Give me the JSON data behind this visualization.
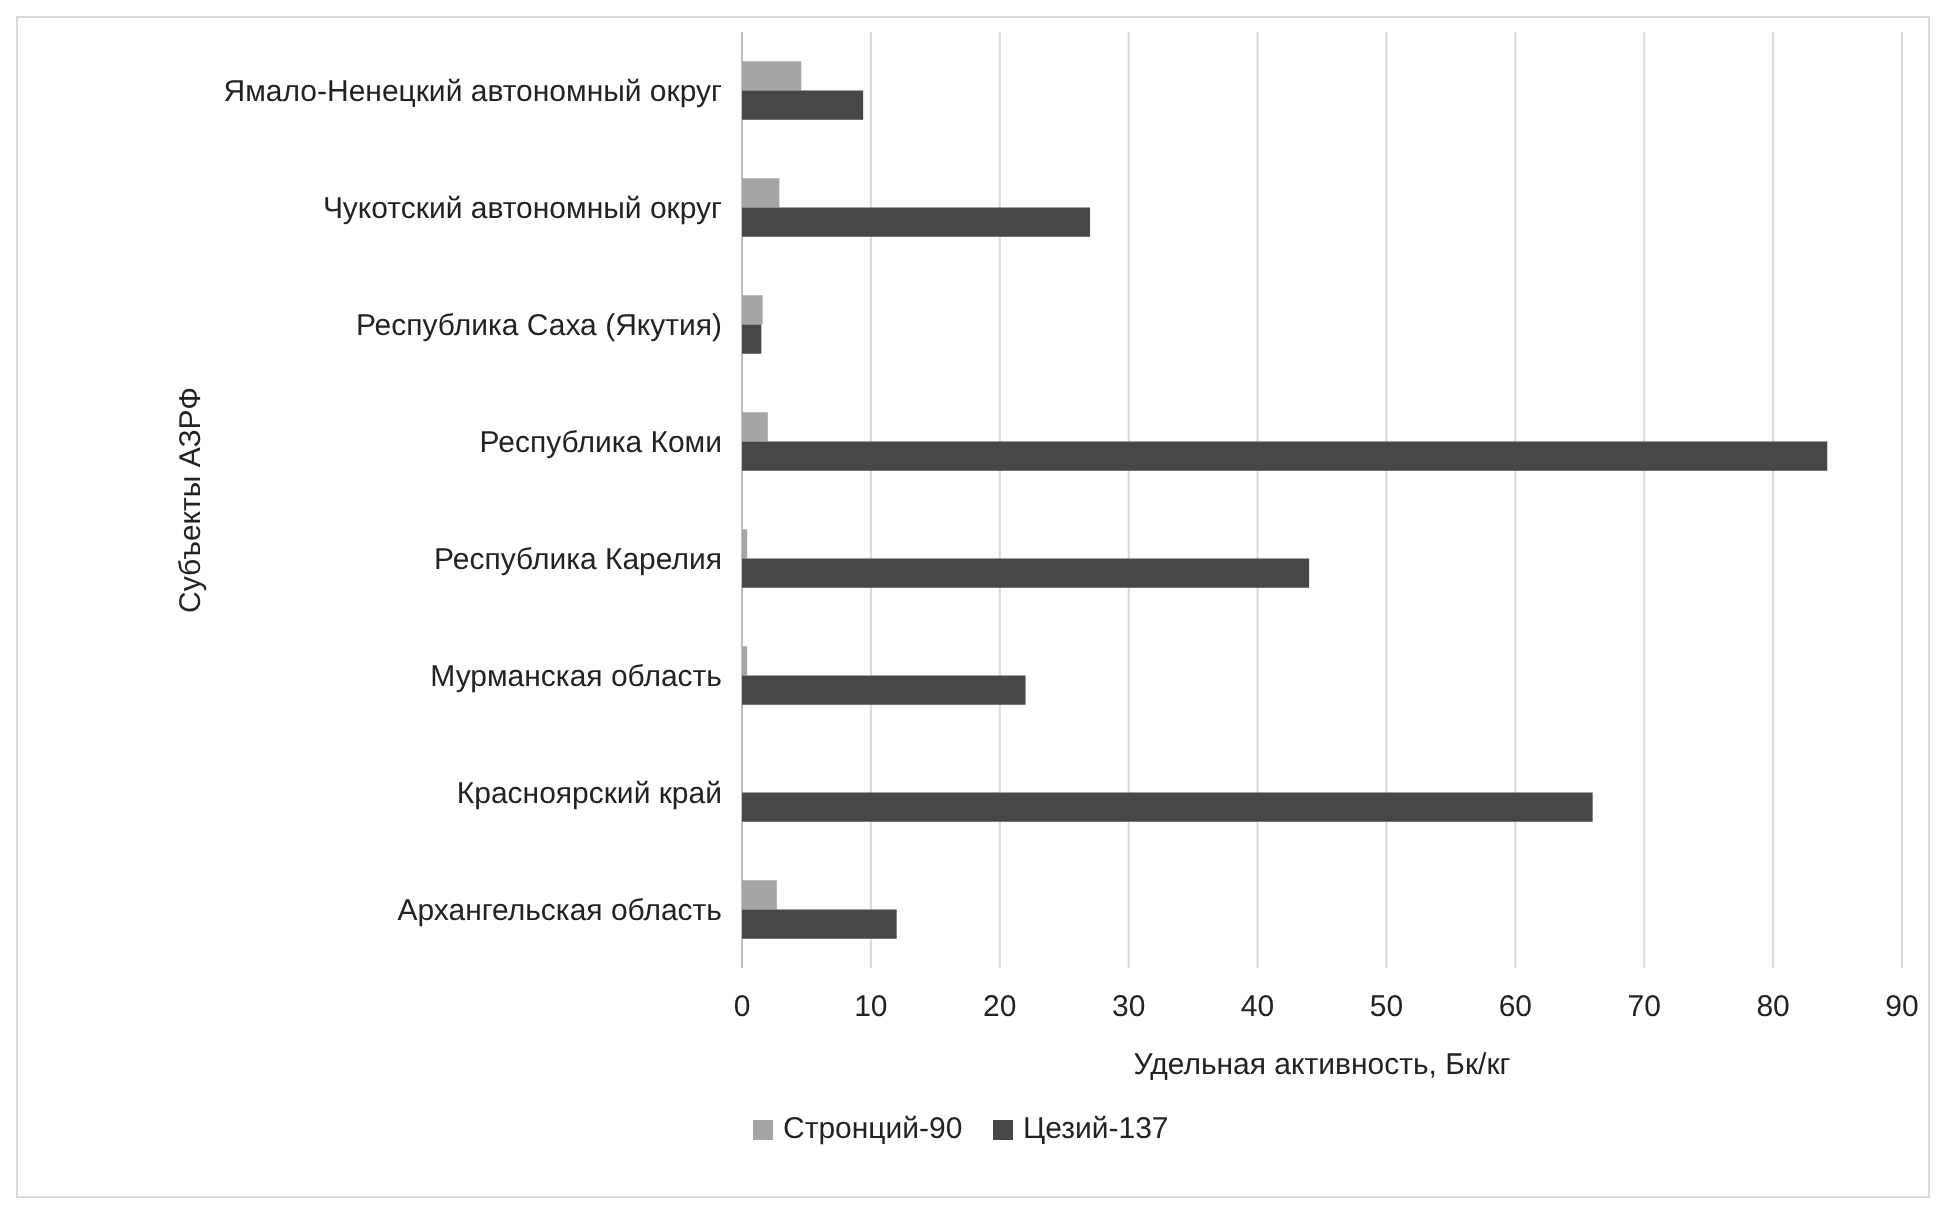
{
  "chart_data": {
    "type": "bar",
    "orientation": "horizontal",
    "xlabel": "Удельная активность, Бк/кг",
    "ylabel": "Субъекты АЗРФ",
    "categories": [
      "Ямало-Ненецкий автономный округ",
      "Чукотский автономный округ",
      "Республика Саха (Якутия)",
      "Республика Коми",
      "Республика Карелия",
      "Мурманская область",
      "Красноярский край",
      "Архангельская область"
    ],
    "series": [
      {
        "name": "Стронций-90",
        "color": "#a5a5a5",
        "values": [
          4.6,
          2.9,
          1.6,
          2,
          0.4,
          0.4,
          0,
          2.7
        ]
      },
      {
        "name": "Цезий-137",
        "color": "#474747",
        "values": [
          9.4,
          27,
          1.5,
          84.2,
          44,
          22,
          66,
          12
        ]
      }
    ],
    "xlim": [
      0,
      90
    ],
    "xticks": [
      0,
      10,
      20,
      30,
      40,
      50,
      60,
      70,
      80,
      90
    ],
    "grid": "x",
    "legend": "bottom"
  }
}
